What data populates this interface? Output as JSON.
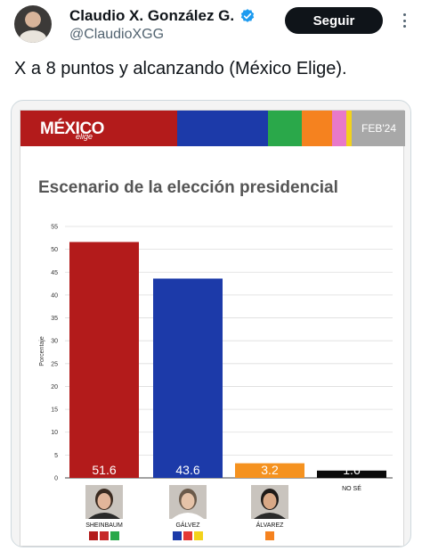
{
  "tweet": {
    "display_name": "Claudio X. González G.",
    "handle": "@ClaudioXGG",
    "follow_label": "Seguir",
    "text": "X a 8 puntos y alcanzando (México Elige).",
    "avatar_icon": "avatar-photo",
    "verified_icon": "verified-badge-icon",
    "more_icon": "more-options-icon",
    "colors": {
      "verified": "#1d9bf0",
      "follow_bg": "#0f1419",
      "handle": "#536471"
    }
  },
  "image": {
    "logo_main": "MÉXICO",
    "logo_sub": "elige",
    "date_label": "FEB'24",
    "banner_colors": [
      "#b31b1b",
      "#1c3aa9",
      "#2aa84a",
      "#f5821f",
      "#e879c9",
      "#b3b3b3"
    ],
    "chart_data": {
      "type": "bar",
      "title": "Escenario de la elección presidencial",
      "ylabel": "Porcentaje",
      "xlabel": "",
      "ylim": [
        0,
        55
      ],
      "yticks": [
        0,
        5,
        10,
        15,
        20,
        25,
        30,
        35,
        40,
        45,
        50,
        55
      ],
      "grid": true,
      "categories": [
        "SHEINBAUM",
        "GÁLVEZ",
        "ÁLVAREZ",
        "NO SÉ"
      ],
      "values": [
        51.6,
        43.6,
        3.2,
        1.6
      ],
      "data_labels": [
        "51.6",
        "43.6",
        "3.2",
        "1.6"
      ],
      "colors": [
        "#b31b1b",
        "#1c3aa9",
        "#f5921f",
        "#0a0a0a"
      ]
    }
  }
}
